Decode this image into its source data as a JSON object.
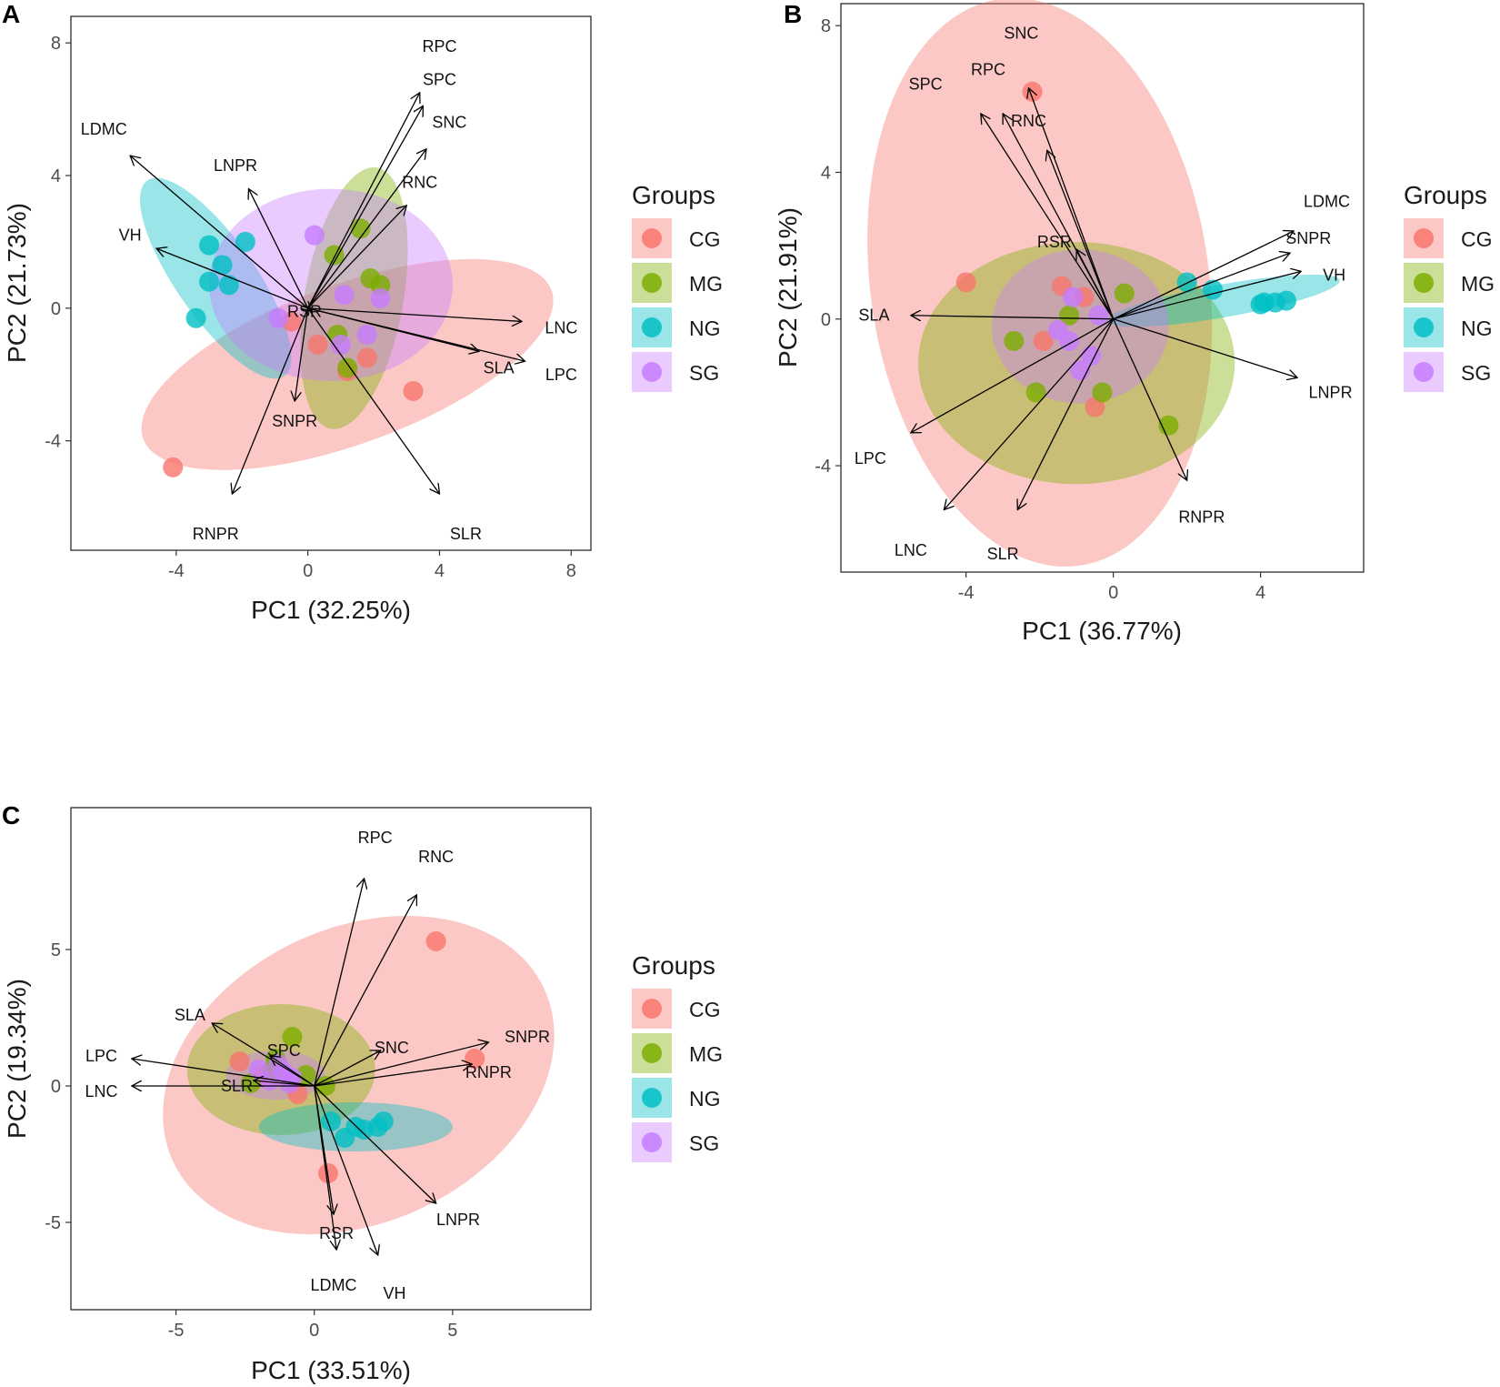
{
  "figure": {
    "legend_title": "Groups",
    "group_colors": {
      "CG": "#F8766D",
      "MG": "#7CAE00",
      "NG": "#00BFC4",
      "SG": "#C77CFF"
    }
  },
  "chart_data": [
    {
      "panel": "A",
      "type": "scatter",
      "subtype": "pca-biplot",
      "xlabel": "PC1 (32.25%)",
      "ylabel": "PC2 (21.73%)",
      "xlim": [
        -7.2,
        8.6
      ],
      "ylim": [
        -7.3,
        8.8
      ],
      "xticks": [
        -4,
        0,
        4,
        8
      ],
      "yticks": [
        -4,
        0,
        4,
        8
      ],
      "legend": {
        "title": "Groups",
        "entries": [
          "CG",
          "MG",
          "NG",
          "SG"
        ]
      },
      "groups": [
        {
          "name": "CG",
          "points": [
            [
              -4.1,
              -4.8
            ],
            [
              3.2,
              -2.5
            ],
            [
              0.3,
              -1.1
            ],
            [
              1.2,
              -1.9
            ],
            [
              1.8,
              -1.5
            ],
            [
              -0.5,
              -0.4
            ]
          ],
          "ellipse": {
            "cx": 1.2,
            "cy": -1.7,
            "rx": 6.6,
            "ry": 2.4,
            "angle": 20
          }
        },
        {
          "name": "MG",
          "points": [
            [
              0.8,
              1.6
            ],
            [
              1.6,
              2.4
            ],
            [
              1.9,
              0.9
            ],
            [
              2.2,
              0.7
            ],
            [
              0.9,
              -0.8
            ],
            [
              1.2,
              -1.8
            ]
          ],
          "ellipse": {
            "cx": 1.4,
            "cy": 0.3,
            "rx": 1.5,
            "ry": 4.0,
            "angle": -10
          }
        },
        {
          "name": "NG",
          "points": [
            [
              -3.0,
              1.9
            ],
            [
              -1.9,
              2.0
            ],
            [
              -2.6,
              1.3
            ],
            [
              -3.0,
              0.8
            ],
            [
              -2.4,
              0.7
            ],
            [
              -3.4,
              -0.3
            ]
          ],
          "ellipse": {
            "cx": -2.8,
            "cy": 0.9,
            "rx": 1.2,
            "ry": 3.6,
            "angle": 35
          }
        },
        {
          "name": "SG",
          "points": [
            [
              0.2,
              2.2
            ],
            [
              1.1,
              0.4
            ],
            [
              1.8,
              -0.8
            ],
            [
              2.2,
              0.3
            ],
            [
              -0.9,
              -0.3
            ],
            [
              1.0,
              -1.1
            ]
          ],
          "ellipse": {
            "cx": 0.7,
            "cy": 0.7,
            "rx": 3.7,
            "ry": 2.9,
            "angle": 0
          }
        },
        {
          "name": "",
          "points": []
        }
      ],
      "loadings": [
        {
          "label": "RPC",
          "x": 3.4,
          "y": 6.5,
          "lx": 4.0,
          "ly": 7.9
        },
        {
          "label": "SPC",
          "x": 3.5,
          "y": 6.1,
          "lx": 4.0,
          "ly": 6.9
        },
        {
          "label": "SNC",
          "x": 3.6,
          "y": 4.8,
          "lx": 4.3,
          "ly": 5.6
        },
        {
          "label": "RNC",
          "x": 3.0,
          "y": 3.1,
          "lx": 3.4,
          "ly": 3.8
        },
        {
          "label": "LDMC",
          "x": -5.4,
          "y": 4.6,
          "lx": -6.2,
          "ly": 5.4
        },
        {
          "label": "LNPR",
          "x": -1.8,
          "y": 3.6,
          "lx": -2.2,
          "ly": 4.3
        },
        {
          "label": "VH",
          "x": -4.6,
          "y": 1.8,
          "lx": -5.4,
          "ly": 2.2
        },
        {
          "label": "LNC",
          "x": 6.5,
          "y": -0.4,
          "lx": 7.7,
          "ly": -0.6
        },
        {
          "label": "LPC",
          "x": 6.6,
          "y": -1.6,
          "lx": 7.7,
          "ly": -2.0
        },
        {
          "label": "SLA",
          "x": 5.2,
          "y": -1.3,
          "lx": 5.8,
          "ly": -1.8
        },
        {
          "label": "SLR",
          "x": 4.0,
          "y": -5.6,
          "lx": 4.8,
          "ly": -6.8
        },
        {
          "label": "RNPR",
          "x": -2.3,
          "y": -5.6,
          "lx": -2.8,
          "ly": -6.8
        },
        {
          "label": "SNPR",
          "x": -0.4,
          "y": -2.8,
          "lx": -0.4,
          "ly": -3.4
        },
        {
          "label": "RSR",
          "x": 0.1,
          "y": -0.1,
          "lx": -0.1,
          "ly": -0.1
        }
      ]
    },
    {
      "panel": "B",
      "type": "scatter",
      "subtype": "pca-biplot",
      "xlabel": "PC1 (36.77%)",
      "ylabel": "PC2 (21.91%)",
      "xlim": [
        -7.4,
        6.8
      ],
      "ylim": [
        -6.9,
        8.6
      ],
      "xticks": [
        -4,
        0,
        4
      ],
      "yticks": [
        -4,
        0,
        4,
        8
      ],
      "legend": {
        "title": "Groups",
        "entries": [
          "CG",
          "MG",
          "NG",
          "SG"
        ]
      },
      "groups": [
        {
          "name": "CG",
          "points": [
            [
              -2.2,
              6.2
            ],
            [
              -4.0,
              1.0
            ],
            [
              -1.4,
              0.9
            ],
            [
              -1.9,
              -0.6
            ],
            [
              -0.8,
              0.6
            ],
            [
              -0.5,
              -2.4
            ]
          ],
          "ellipse": {
            "cx": -2.0,
            "cy": 1.0,
            "rx": 4.6,
            "ry": 7.8,
            "angle": 8
          }
        },
        {
          "name": "MG",
          "points": [
            [
              0.3,
              0.7
            ],
            [
              -2.7,
              -0.6
            ],
            [
              -2.1,
              -2.0
            ],
            [
              -0.3,
              -2.0
            ],
            [
              1.5,
              -2.9
            ],
            [
              -1.2,
              0.1
            ]
          ],
          "ellipse": {
            "cx": -1.0,
            "cy": -1.2,
            "rx": 4.3,
            "ry": 3.3,
            "angle": 0
          }
        },
        {
          "name": "NG",
          "points": [
            [
              2.0,
              1.0
            ],
            [
              2.7,
              0.8
            ],
            [
              4.0,
              0.4
            ],
            [
              4.4,
              0.45
            ],
            [
              4.7,
              0.5
            ],
            [
              4.1,
              0.45
            ]
          ],
          "ellipse": {
            "cx": 3.0,
            "cy": 0.5,
            "rx": 3.2,
            "ry": 0.45,
            "angle": 10
          }
        },
        {
          "name": "SG",
          "points": [
            [
              -1.2,
              -0.6
            ],
            [
              -1.1,
              0.6
            ],
            [
              -0.4,
              0.1
            ],
            [
              -0.9,
              -1.4
            ],
            [
              -1.5,
              -0.3
            ],
            [
              -0.6,
              -1.0
            ]
          ],
          "ellipse": {
            "cx": -0.9,
            "cy": -0.2,
            "rx": 2.4,
            "ry": 2.1,
            "angle": 0
          }
        }
      ],
      "loadings": [
        {
          "label": "SNC",
          "x": -2.3,
          "y": 6.3,
          "lx": -2.5,
          "ly": 7.8
        },
        {
          "label": "RPC",
          "x": -3.0,
          "y": 5.6,
          "lx": -3.4,
          "ly": 6.8
        },
        {
          "label": "SPC",
          "x": -3.6,
          "y": 5.6,
          "lx": -5.1,
          "ly": 6.4
        },
        {
          "label": "RNC",
          "x": -1.8,
          "y": 4.6,
          "lx": -2.3,
          "ly": 5.4
        },
        {
          "label": "RSR",
          "x": -1.0,
          "y": 1.9,
          "lx": -1.6,
          "ly": 2.1
        },
        {
          "label": "LDMC",
          "x": 4.9,
          "y": 2.4,
          "lx": 5.8,
          "ly": 3.2
        },
        {
          "label": "SNPR",
          "x": 4.8,
          "y": 1.8,
          "lx": 5.3,
          "ly": 2.2
        },
        {
          "label": "VH",
          "x": 5.1,
          "y": 1.3,
          "lx": 6.0,
          "ly": 1.2
        },
        {
          "label": "LNPR",
          "x": 5.0,
          "y": -1.6,
          "lx": 5.9,
          "ly": -2.0
        },
        {
          "label": "SLA",
          "x": -5.5,
          "y": 0.1,
          "lx": -6.5,
          "ly": 0.1
        },
        {
          "label": "LPC",
          "x": -5.5,
          "y": -3.1,
          "lx": -6.6,
          "ly": -3.8
        },
        {
          "label": "LNC",
          "x": -4.6,
          "y": -5.2,
          "lx": -5.5,
          "ly": -6.3
        },
        {
          "label": "SLR",
          "x": -2.6,
          "y": -5.2,
          "lx": -3.0,
          "ly": -6.4
        },
        {
          "label": "RNPR",
          "x": 2.0,
          "y": -4.4,
          "lx": 2.4,
          "ly": -5.4
        }
      ]
    },
    {
      "panel": "C",
      "type": "scatter",
      "subtype": "pca-biplot",
      "xlabel": "PC1 (33.51%)",
      "ylabel": "PC2 (19.34%)",
      "xlim": [
        -8.8,
        10.0
      ],
      "ylim": [
        -8.2,
        10.2
      ],
      "xticks": [
        -5,
        0,
        5
      ],
      "yticks": [
        -5,
        0,
        5
      ],
      "legend": {
        "title": "Groups",
        "entries": [
          "CG",
          "MG",
          "NG",
          "SG"
        ]
      },
      "groups": [
        {
          "name": "CG",
          "points": [
            [
              4.4,
              5.3
            ],
            [
              5.8,
              1.0
            ],
            [
              0.5,
              -3.2
            ],
            [
              -2.7,
              0.9
            ],
            [
              -0.6,
              -0.3
            ],
            [
              -1.8,
              0.4
            ]
          ],
          "ellipse": {
            "cx": 1.6,
            "cy": 0.4,
            "rx": 7.4,
            "ry": 5.4,
            "angle": 25
          }
        },
        {
          "name": "MG",
          "points": [
            [
              -0.8,
              1.8
            ],
            [
              -1.5,
              0.6
            ],
            [
              -2.3,
              0.1
            ],
            [
              0.4,
              0.0
            ],
            [
              -1.4,
              1.0
            ],
            [
              -0.3,
              0.4
            ]
          ],
          "ellipse": {
            "cx": -1.2,
            "cy": 0.6,
            "rx": 3.4,
            "ry": 2.4,
            "angle": 0
          }
        },
        {
          "name": "NG",
          "points": [
            [
              0.6,
              -1.3
            ],
            [
              1.5,
              -1.5
            ],
            [
              2.3,
              -1.5
            ],
            [
              2.5,
              -1.3
            ],
            [
              1.1,
              -1.9
            ],
            [
              1.8,
              -1.6
            ]
          ],
          "ellipse": {
            "cx": 1.5,
            "cy": -1.5,
            "rx": 3.5,
            "ry": 0.9,
            "angle": 0
          }
        },
        {
          "name": "SG",
          "points": [
            [
              -1.6,
              0.2
            ],
            [
              -1.1,
              0.5
            ],
            [
              -2.0,
              0.6
            ],
            [
              -0.9,
              0.1
            ],
            [
              -1.3,
              0.8
            ],
            [
              -0.8,
              0.3
            ]
          ],
          "ellipse": {
            "cx": -1.4,
            "cy": 0.4,
            "rx": 1.8,
            "ry": 0.9,
            "angle": 0
          }
        }
      ],
      "loadings": [
        {
          "label": "RPC",
          "x": 1.8,
          "y": 7.6,
          "lx": 2.2,
          "ly": 9.1
        },
        {
          "label": "RNC",
          "x": 3.7,
          "y": 7.0,
          "lx": 4.4,
          "ly": 8.4
        },
        {
          "label": "SLA",
          "x": -3.7,
          "y": 2.3,
          "lx": -4.5,
          "ly": 2.6
        },
        {
          "label": "LPC",
          "x": -6.6,
          "y": 1.0,
          "lx": -7.7,
          "ly": 1.1
        },
        {
          "label": "LNC",
          "x": -6.6,
          "y": 0.0,
          "lx": -7.7,
          "ly": -0.2
        },
        {
          "label": "SPC",
          "x": -1.6,
          "y": 1.1,
          "lx": -1.1,
          "ly": 1.3
        },
        {
          "label": "SLR",
          "x": -2.2,
          "y": 0.2,
          "lx": -2.8,
          "ly": 0.0
        },
        {
          "label": "SNC",
          "x": 2.4,
          "y": 1.3,
          "lx": 2.8,
          "ly": 1.4
        },
        {
          "label": "SNPR",
          "x": 6.3,
          "y": 1.6,
          "lx": 7.7,
          "ly": 1.8
        },
        {
          "label": "RNPR",
          "x": 5.7,
          "y": 0.8,
          "lx": 6.3,
          "ly": 0.5
        },
        {
          "label": "LNPR",
          "x": 4.4,
          "y": -4.3,
          "lx": 5.2,
          "ly": -4.9
        },
        {
          "label": "RSR",
          "x": 0.8,
          "y": -6.0,
          "lx": 0.8,
          "ly": -5.4
        },
        {
          "label": "LDMC",
          "x": 0.7,
          "y": -4.7,
          "lx": 0.7,
          "ly": -7.3
        },
        {
          "label": "VH",
          "x": 2.3,
          "y": -6.2,
          "lx": 2.9,
          "ly": -7.6
        }
      ]
    }
  ]
}
